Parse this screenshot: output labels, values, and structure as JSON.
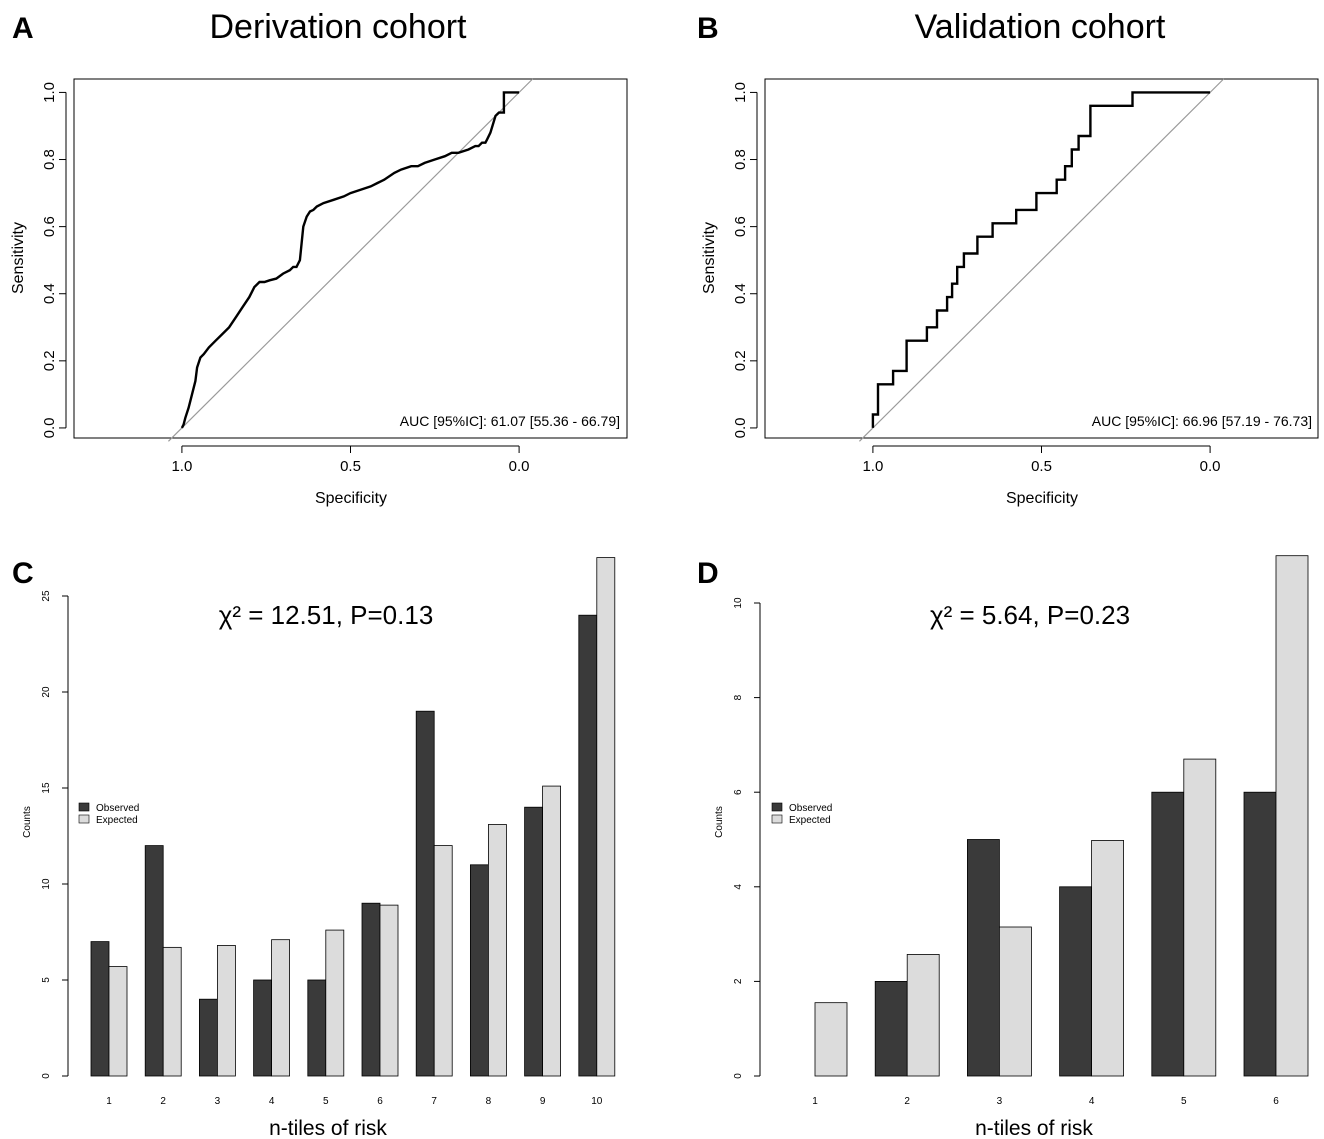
{
  "chart_data": [
    {
      "panel_label": "A",
      "type": "line",
      "title": "Derivation cohort",
      "xlabel": "Specificity",
      "ylabel": "Sensitivity",
      "x_reversed": true,
      "xlim": [
        1.32,
        -0.32
      ],
      "ylim": [
        -0.03,
        1.04
      ],
      "x_ticks": [
        1.0,
        0.5,
        0.0
      ],
      "x_tick_labels": [
        "1.0",
        "0.5",
        "0.0"
      ],
      "y_ticks": [
        0,
        0.2,
        0.4,
        0.6,
        0.8,
        1.0
      ],
      "y_tick_labels": [
        "0.0",
        "0.2",
        "0.4",
        "0.6",
        "0.8",
        "1.0"
      ],
      "annotation": "AUC [95%IC]: 61.07 [55.36 - 66.79]",
      "reference_line": [
        [
          1.04,
          -0.04
        ],
        [
          -0.04,
          1.04
        ]
      ],
      "series": [
        {
          "specificity": [
            1.0,
            0.995,
            0.99,
            0.98,
            0.97,
            0.96,
            0.955,
            0.945,
            0.935,
            0.92,
            0.9,
            0.88,
            0.86,
            0.84,
            0.82,
            0.8,
            0.785,
            0.77,
            0.755,
            0.74,
            0.72,
            0.7,
            0.68,
            0.67,
            0.66,
            0.65,
            0.645,
            0.64,
            0.63,
            0.62,
            0.61,
            0.6,
            0.58,
            0.55,
            0.52,
            0.5,
            0.47,
            0.44,
            0.42,
            0.4,
            0.37,
            0.35,
            0.32,
            0.3,
            0.28,
            0.25,
            0.22,
            0.2,
            0.18,
            0.15,
            0.13,
            0.12,
            0.11,
            0.1,
            0.095,
            0.085,
            0.07,
            0.06,
            0.045,
            0.045,
            0.0
          ],
          "sensitivity": [
            0.0,
            0.01,
            0.03,
            0.06,
            0.1,
            0.14,
            0.18,
            0.21,
            0.22,
            0.24,
            0.26,
            0.28,
            0.3,
            0.33,
            0.36,
            0.39,
            0.42,
            0.435,
            0.435,
            0.44,
            0.445,
            0.46,
            0.47,
            0.48,
            0.48,
            0.5,
            0.55,
            0.6,
            0.63,
            0.645,
            0.65,
            0.66,
            0.67,
            0.68,
            0.69,
            0.7,
            0.71,
            0.72,
            0.73,
            0.74,
            0.76,
            0.77,
            0.78,
            0.78,
            0.79,
            0.8,
            0.81,
            0.82,
            0.82,
            0.83,
            0.84,
            0.84,
            0.85,
            0.85,
            0.86,
            0.88,
            0.93,
            0.94,
            0.94,
            1.0,
            1.0
          ]
        }
      ]
    },
    {
      "panel_label": "B",
      "type": "line",
      "title": "Validation cohort",
      "xlabel": "Specificity",
      "ylabel": "Sensitivity",
      "x_reversed": true,
      "xlim": [
        1.32,
        -0.32
      ],
      "ylim": [
        -0.03,
        1.04
      ],
      "x_ticks": [
        1.0,
        0.5,
        0.0
      ],
      "x_tick_labels": [
        "1.0",
        "0.5",
        "0.0"
      ],
      "y_ticks": [
        0,
        0.2,
        0.4,
        0.6,
        0.8,
        1.0
      ],
      "y_tick_labels": [
        "0.0",
        "0.2",
        "0.4",
        "0.6",
        "0.8",
        "1.0"
      ],
      "annotation": "AUC [95%IC]: 66.96 [57.19 - 76.73]",
      "reference_line": [
        [
          1.04,
          -0.04
        ],
        [
          -0.04,
          1.04
        ]
      ],
      "series": [
        {
          "specificity": [
            1.0,
            1.0,
            0.985,
            0.985,
            0.975,
            0.975,
            0.94,
            0.94,
            0.9,
            0.9,
            0.84,
            0.84,
            0.81,
            0.81,
            0.78,
            0.78,
            0.765,
            0.765,
            0.75,
            0.75,
            0.73,
            0.73,
            0.69,
            0.69,
            0.665,
            0.665,
            0.645,
            0.645,
            0.575,
            0.575,
            0.515,
            0.515,
            0.455,
            0.455,
            0.43,
            0.43,
            0.41,
            0.41,
            0.39,
            0.39,
            0.355,
            0.355,
            0.23,
            0.23,
            0.0
          ],
          "sensitivity": [
            0.0,
            0.04,
            0.04,
            0.13,
            0.13,
            0.13,
            0.13,
            0.17,
            0.17,
            0.26,
            0.26,
            0.3,
            0.3,
            0.35,
            0.35,
            0.39,
            0.39,
            0.43,
            0.43,
            0.48,
            0.48,
            0.52,
            0.52,
            0.57,
            0.57,
            0.57,
            0.57,
            0.61,
            0.61,
            0.65,
            0.65,
            0.7,
            0.7,
            0.74,
            0.74,
            0.78,
            0.78,
            0.83,
            0.83,
            0.87,
            0.87,
            0.96,
            0.96,
            1.0,
            1.0
          ]
        }
      ]
    },
    {
      "panel_label": "C",
      "type": "bar",
      "annotation": "χ² = 12.51, P=0.13",
      "xlabel": "n-tiles of risk",
      "ylabel": "Counts",
      "ylim": [
        0,
        25
      ],
      "y_ticks": [
        0,
        5,
        10,
        15,
        20,
        25
      ],
      "categories": [
        "1",
        "2",
        "3",
        "4",
        "5",
        "6",
        "7",
        "8",
        "9",
        "10"
      ],
      "series": [
        {
          "name": "Observed",
          "color": "#3a3a3a",
          "values": [
            7,
            12,
            4,
            5,
            5,
            9,
            19,
            11,
            14,
            24
          ]
        },
        {
          "name": "Expected",
          "color": "#dcdcdc",
          "values": [
            5.7,
            6.7,
            6.8,
            7.1,
            7.6,
            8.9,
            12.0,
            13.1,
            15.1,
            27.0
          ]
        }
      ],
      "legend_position": "left"
    },
    {
      "panel_label": "D",
      "type": "bar",
      "annotation": "χ² = 5.64, P=0.23",
      "xlabel": "n-tiles of risk",
      "ylabel": "Counts",
      "ylim": [
        0,
        10
      ],
      "y_ticks": [
        0,
        2,
        4,
        6,
        8,
        10
      ],
      "categories": [
        "1",
        "2",
        "3",
        "4",
        "5",
        "6"
      ],
      "series": [
        {
          "name": "Observed",
          "color": "#3a3a3a",
          "values": [
            0,
            2,
            5,
            4,
            6,
            6
          ]
        },
        {
          "name": "Expected",
          "color": "#dcdcdc",
          "values": [
            1.55,
            2.57,
            3.15,
            4.98,
            6.7,
            11.0
          ]
        }
      ],
      "legend_position": "left"
    }
  ]
}
